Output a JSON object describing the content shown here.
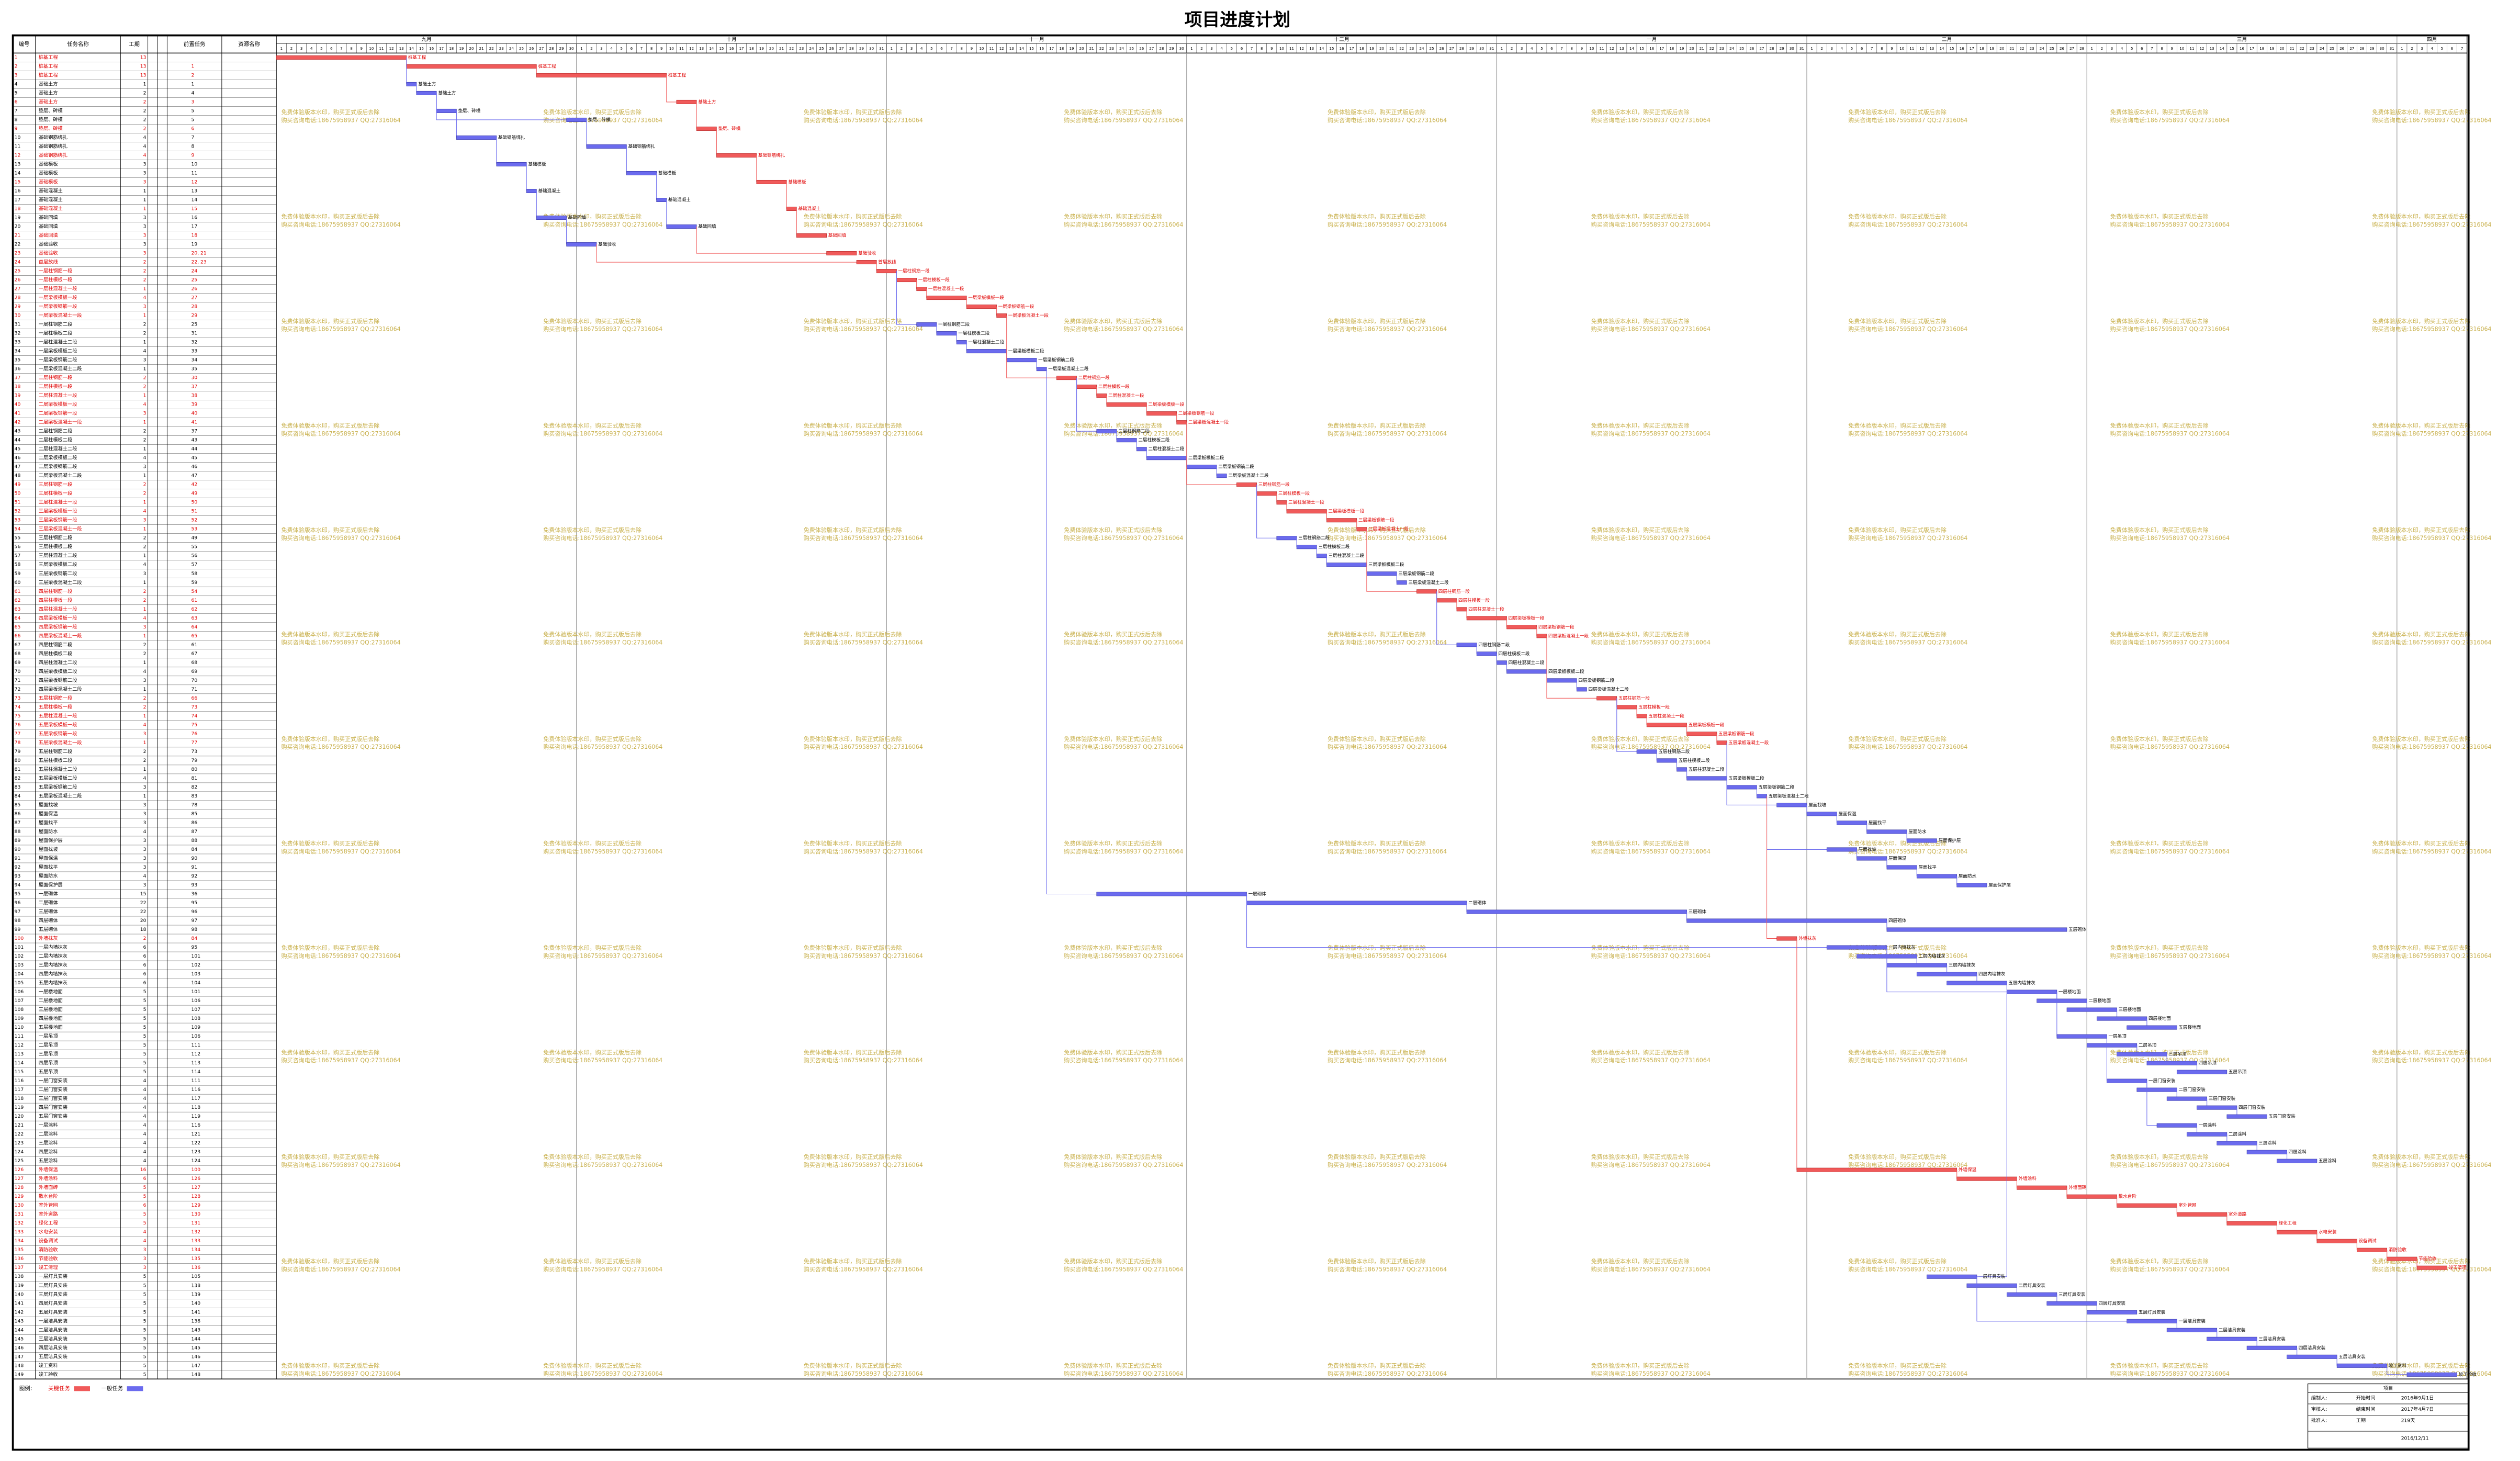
{
  "chart_data": {
    "type": "gantt",
    "title": "项目进度计划",
    "columns": [
      "编号",
      "任务名称",
      "工期",
      "前置任务",
      "资源名称"
    ],
    "xlim": [
      0,
      219
    ],
    "months": [
      {
        "label": "九月",
        "days": [
          1,
          2,
          3,
          4,
          5,
          6,
          7,
          8,
          9,
          10,
          11,
          12,
          13,
          14,
          15,
          16,
          17,
          18,
          19,
          20,
          21,
          22,
          23,
          24,
          25,
          26,
          27,
          28,
          29,
          30
        ]
      },
      {
        "label": "十月",
        "days": [
          1,
          2,
          3,
          4,
          5,
          6,
          7,
          8,
          9,
          10,
          11,
          12,
          13,
          14,
          15,
          16,
          17,
          18,
          19,
          20,
          21,
          22,
          23,
          24,
          25,
          26,
          27,
          28,
          29,
          30,
          31
        ]
      },
      {
        "label": "十一月",
        "days": [
          1,
          2,
          3,
          4,
          5,
          6,
          7,
          8,
          9,
          10,
          11,
          12,
          13,
          14,
          15,
          16,
          17,
          18,
          19,
          20,
          21,
          22,
          23,
          24,
          25,
          26,
          27,
          28,
          29,
          30
        ]
      },
      {
        "label": "十二月",
        "days": [
          1,
          2,
          3,
          4,
          5,
          6,
          7,
          8,
          9,
          10,
          11,
          12,
          13,
          14,
          15,
          16,
          17,
          18,
          19,
          20,
          21,
          22,
          23,
          24,
          25,
          26,
          27,
          28,
          29,
          30,
          31
        ]
      },
      {
        "label": "一月",
        "days": [
          1,
          2,
          3,
          4,
          5,
          6,
          7,
          8,
          9,
          10,
          11,
          12,
          13,
          14,
          15,
          16,
          17,
          18,
          19,
          20,
          21,
          22,
          23,
          24,
          25,
          26,
          27,
          28,
          29,
          30,
          31
        ]
      },
      {
        "label": "二月",
        "days": [
          1,
          2,
          3,
          4,
          5,
          6,
          7,
          8,
          9,
          10,
          11,
          12,
          13,
          14,
          15,
          16,
          17,
          18,
          19,
          20,
          21,
          22,
          23,
          24,
          25,
          26,
          27,
          28
        ]
      },
      {
        "label": "三月",
        "days": [
          1,
          2,
          3,
          4,
          5,
          6,
          7,
          8,
          9,
          10,
          11,
          12,
          13,
          14,
          15,
          16,
          17,
          18,
          19,
          20,
          21,
          22,
          23,
          24,
          25,
          26,
          27,
          28,
          29,
          30,
          31
        ]
      },
      {
        "label": "四月",
        "days": [
          1,
          2,
          3,
          4,
          5,
          6,
          7
        ]
      }
    ],
    "critical_color": "#f05a5a",
    "normal_color": "#6b6bee",
    "rows": [
      [
        1,
        "桩基工程",
        13,
        null,
        0,
        1
      ],
      [
        2,
        "桩基工程",
        13,
        "1",
        13,
        1
      ],
      [
        3,
        "桩基工程",
        13,
        "2",
        26,
        1
      ],
      [
        4,
        "基础土方",
        1,
        "1",
        13,
        0
      ],
      [
        5,
        "基础土方",
        2,
        "4",
        14,
        0
      ],
      [
        6,
        "基础土方",
        2,
        "3",
        40,
        1
      ],
      [
        7,
        "垫层、砖模",
        2,
        "5",
        16,
        0
      ],
      [
        8,
        "垫层、砖模",
        2,
        "5",
        29,
        0
      ],
      [
        9,
        "垫层、砖模",
        2,
        "6",
        42,
        1
      ],
      [
        10,
        "基础钢筋绑扎",
        4,
        "7",
        18,
        0
      ],
      [
        11,
        "基础钢筋绑扎",
        4,
        "8",
        31,
        0
      ],
      [
        12,
        "基础钢筋绑扎",
        4,
        "9",
        44,
        1
      ],
      [
        13,
        "基础模板",
        3,
        "10",
        22,
        0
      ],
      [
        14,
        "基础模板",
        3,
        "11",
        35,
        0
      ],
      [
        15,
        "基础模板",
        3,
        "12",
        48,
        1
      ],
      [
        16,
        "基础混凝土",
        1,
        "13",
        25,
        0
      ],
      [
        17,
        "基础混凝土",
        1,
        "14",
        38,
        0
      ],
      [
        18,
        "基础混凝土",
        1,
        "15",
        51,
        1
      ],
      [
        19,
        "基础回填",
        3,
        "16",
        26,
        0
      ],
      [
        20,
        "基础回填",
        3,
        "17",
        39,
        0
      ],
      [
        21,
        "基础回填",
        3,
        "18",
        52,
        1
      ],
      [
        22,
        "基础验收",
        3,
        "19",
        29,
        0
      ],
      [
        23,
        "基础验收",
        3,
        "20, 21",
        55,
        1
      ],
      [
        24,
        "首层放线",
        2,
        "22, 23",
        58,
        1
      ],
      [
        25,
        "一层柱钢筋一段",
        2,
        "24",
        60,
        1
      ],
      [
        26,
        "一层柱模板一段",
        2,
        "25",
        62,
        1
      ],
      [
        27,
        "一层柱混凝土一段",
        1,
        "26",
        64,
        1
      ],
      [
        28,
        "一层梁板模板一段",
        4,
        "27",
        65,
        1
      ],
      [
        29,
        "一层梁板钢筋一段",
        3,
        "28",
        69,
        1
      ],
      [
        30,
        "一层梁板混凝土一段",
        1,
        "29",
        72,
        1
      ],
      [
        31,
        "一层柱钢筋二段",
        2,
        "25",
        64,
        0
      ],
      [
        32,
        "一层柱模板二段",
        2,
        "31",
        66,
        0
      ],
      [
        33,
        "一层柱混凝土二段",
        1,
        "32",
        68,
        0
      ],
      [
        34,
        "一层梁板模板二段",
        4,
        "33",
        69,
        0
      ],
      [
        35,
        "一层梁板钢筋二段",
        3,
        "34",
        73,
        0
      ],
      [
        36,
        "一层梁板混凝土二段",
        1,
        "35",
        76,
        0
      ],
      [
        37,
        "二层柱钢筋一段",
        2,
        "30",
        78,
        1
      ],
      [
        38,
        "二层柱模板一段",
        2,
        "37",
        80,
        1
      ],
      [
        39,
        "二层柱混凝土一段",
        1,
        "38",
        82,
        1
      ],
      [
        40,
        "二层梁板模板一段",
        4,
        "39",
        83,
        1
      ],
      [
        41,
        "二层梁板钢筋一段",
        3,
        "40",
        87,
        1
      ],
      [
        42,
        "二层梁板混凝土一段",
        1,
        "41",
        90,
        1
      ],
      [
        43,
        "二层柱钢筋二段",
        2,
        "37",
        82,
        0
      ],
      [
        44,
        "二层柱模板二段",
        2,
        "43",
        84,
        0
      ],
      [
        45,
        "二层柱混凝土二段",
        1,
        "44",
        86,
        0
      ],
      [
        46,
        "二层梁板模板二段",
        4,
        "45",
        87,
        0
      ],
      [
        47,
        "二层梁板钢筋二段",
        3,
        "46",
        91,
        0
      ],
      [
        48,
        "二层梁板混凝土二段",
        1,
        "47",
        94,
        0
      ],
      [
        49,
        "三层柱钢筋一段",
        2,
        "42",
        96,
        1
      ],
      [
        50,
        "三层柱模板一段",
        2,
        "49",
        98,
        1
      ],
      [
        51,
        "三层柱混凝土一段",
        1,
        "50",
        100,
        1
      ],
      [
        52,
        "三层梁板模板一段",
        4,
        "51",
        101,
        1
      ],
      [
        53,
        "三层梁板钢筋一段",
        3,
        "52",
        105,
        1
      ],
      [
        54,
        "三层梁板混凝土一段",
        1,
        "53",
        108,
        1
      ],
      [
        55,
        "三层柱钢筋二段",
        2,
        "49",
        100,
        0
      ],
      [
        56,
        "三层柱模板二段",
        2,
        "55",
        102,
        0
      ],
      [
        57,
        "三层柱混凝土二段",
        1,
        "56",
        104,
        0
      ],
      [
        58,
        "三层梁板模板二段",
        4,
        "57",
        105,
        0
      ],
      [
        59,
        "三层梁板钢筋二段",
        3,
        "58",
        109,
        0
      ],
      [
        60,
        "三层梁板混凝土二段",
        1,
        "59",
        112,
        0
      ],
      [
        61,
        "四层柱钢筋一段",
        2,
        "54",
        114,
        1
      ],
      [
        62,
        "四层柱模板一段",
        2,
        "61",
        116,
        1
      ],
      [
        63,
        "四层柱混凝土一段",
        1,
        "62",
        118,
        1
      ],
      [
        64,
        "四层梁板模板一段",
        4,
        "63",
        119,
        1
      ],
      [
        65,
        "四层梁板钢筋一段",
        3,
        "64",
        123,
        1
      ],
      [
        66,
        "四层梁板混凝土一段",
        1,
        "65",
        126,
        1
      ],
      [
        67,
        "四层柱钢筋二段",
        2,
        "61",
        118,
        0
      ],
      [
        68,
        "四层柱模板二段",
        2,
        "67",
        120,
        0
      ],
      [
        69,
        "四层柱混凝土二段",
        1,
        "68",
        122,
        0
      ],
      [
        70,
        "四层梁板模板二段",
        4,
        "69",
        123,
        0
      ],
      [
        71,
        "四层梁板钢筋二段",
        3,
        "70",
        127,
        0
      ],
      [
        72,
        "四层梁板混凝土二段",
        1,
        "71",
        130,
        0
      ],
      [
        73,
        "五层柱钢筋一段",
        2,
        "66",
        132,
        1
      ],
      [
        74,
        "五层柱模板一段",
        2,
        "73",
        134,
        1
      ],
      [
        75,
        "五层柱混凝土一段",
        1,
        "74",
        136,
        1
      ],
      [
        76,
        "五层梁板模板一段",
        4,
        "75",
        137,
        1
      ],
      [
        77,
        "五层梁板钢筋一段",
        3,
        "76",
        141,
        1
      ],
      [
        78,
        "五层梁板混凝土一段",
        1,
        "77",
        144,
        1
      ],
      [
        79,
        "五层柱钢筋二段",
        2,
        "73",
        136,
        0
      ],
      [
        80,
        "五层柱模板二段",
        2,
        "79",
        138,
        0
      ],
      [
        81,
        "五层柱混凝土二段",
        1,
        "80",
        140,
        0
      ],
      [
        82,
        "五层梁板模板二段",
        4,
        "81",
        141,
        0
      ],
      [
        83,
        "五层梁板钢筋二段",
        3,
        "82",
        145,
        0
      ],
      [
        84,
        "五层梁板混凝土二段",
        1,
        "83",
        148,
        0
      ],
      [
        85,
        "屋面找坡",
        3,
        "78",
        150,
        0
      ],
      [
        86,
        "屋面保温",
        3,
        "85",
        153,
        0
      ],
      [
        87,
        "屋面找平",
        3,
        "86",
        156,
        0
      ],
      [
        88,
        "屋面防水",
        4,
        "87",
        159,
        0
      ],
      [
        89,
        "屋面保护层",
        3,
        "88",
        163,
        0
      ],
      [
        90,
        "屋面找坡",
        3,
        "84",
        155,
        0
      ],
      [
        91,
        "屋面保温",
        3,
        "90",
        158,
        0
      ],
      [
        92,
        "屋面找平",
        3,
        "91",
        161,
        0
      ],
      [
        93,
        "屋面防水",
        4,
        "92",
        164,
        0
      ],
      [
        94,
        "屋面保护层",
        3,
        "93",
        168,
        0
      ],
      [
        95,
        "一层砌体",
        15,
        "36",
        82,
        0
      ],
      [
        96,
        "二层砌体",
        22,
        "95",
        97,
        0
      ],
      [
        97,
        "三层砌体",
        22,
        "96",
        119,
        0
      ],
      [
        98,
        "四层砌体",
        20,
        "97",
        141,
        0
      ],
      [
        99,
        "五层砌体",
        18,
        "98",
        161,
        0
      ],
      [
        100,
        "外墙抹灰",
        2,
        "84",
        150,
        1
      ],
      [
        101,
        "一层内墙抹灰",
        6,
        "95",
        155,
        0
      ],
      [
        102,
        "二层内墙抹灰",
        6,
        "101",
        158,
        0
      ],
      [
        103,
        "三层内墙抹灰",
        6,
        "102",
        161,
        0
      ],
      [
        104,
        "四层内墙抹灰",
        6,
        "103",
        164,
        0
      ],
      [
        105,
        "五层内墙抹灰",
        6,
        "104",
        167,
        0
      ],
      [
        106,
        "一层楼地面",
        5,
        "101",
        173,
        0
      ],
      [
        107,
        "二层楼地面",
        5,
        "106",
        176,
        0
      ],
      [
        108,
        "三层楼地面",
        5,
        "107",
        179,
        0
      ],
      [
        109,
        "四层楼地面",
        5,
        "108",
        182,
        0
      ],
      [
        110,
        "五层楼地面",
        5,
        "109",
        185,
        0
      ],
      [
        111,
        "一层吊顶",
        5,
        "106",
        178,
        0
      ],
      [
        112,
        "二层吊顶",
        5,
        "111",
        181,
        0
      ],
      [
        113,
        "三层吊顶",
        5,
        "112",
        184,
        0
      ],
      [
        114,
        "四层吊顶",
        5,
        "113",
        187,
        0
      ],
      [
        115,
        "五层吊顶",
        5,
        "114",
        190,
        0
      ],
      [
        116,
        "一层门窗安装",
        4,
        "111",
        183,
        0
      ],
      [
        117,
        "二层门窗安装",
        4,
        "116",
        186,
        0
      ],
      [
        118,
        "三层门窗安装",
        4,
        "117",
        189,
        0
      ],
      [
        119,
        "四层门窗安装",
        4,
        "118",
        192,
        0
      ],
      [
        120,
        "五层门窗安装",
        4,
        "119",
        195,
        0
      ],
      [
        121,
        "一层涂料",
        4,
        "116",
        188,
        0
      ],
      [
        122,
        "二层涂料",
        4,
        "121",
        191,
        0
      ],
      [
        123,
        "三层涂料",
        4,
        "122",
        194,
        0
      ],
      [
        124,
        "四层涂料",
        4,
        "123",
        197,
        0
      ],
      [
        125,
        "五层涂料",
        4,
        "124",
        200,
        0
      ],
      [
        126,
        "外墙保温",
        16,
        "100",
        152,
        1
      ],
      [
        127,
        "外墙涂料",
        6,
        "126",
        168,
        1
      ],
      [
        128,
        "外墙面砖",
        5,
        "127",
        174,
        1
      ],
      [
        129,
        "散水台阶",
        5,
        "128",
        179,
        1
      ],
      [
        130,
        "室外管网",
        6,
        "129",
        184,
        1
      ],
      [
        131,
        "室外道路",
        5,
        "130",
        190,
        1
      ],
      [
        132,
        "绿化工程",
        5,
        "131",
        195,
        1
      ],
      [
        133,
        "水电安装",
        4,
        "132",
        200,
        1
      ],
      [
        134,
        "设备调试",
        4,
        "133",
        204,
        1
      ],
      [
        135,
        "消防验收",
        3,
        "134",
        208,
        1
      ],
      [
        136,
        "节能验收",
        3,
        "135",
        211,
        1
      ],
      [
        137,
        "竣工清理",
        3,
        "136",
        214,
        1
      ],
      [
        138,
        "一层灯具安装",
        5,
        "105",
        165,
        0
      ],
      [
        139,
        "二层灯具安装",
        5,
        "138",
        169,
        0
      ],
      [
        140,
        "三层灯具安装",
        5,
        "139",
        173,
        0
      ],
      [
        141,
        "四层灯具安装",
        5,
        "140",
        177,
        0
      ],
      [
        142,
        "五层灯具安装",
        5,
        "141",
        181,
        0
      ],
      [
        143,
        "一层洁具安装",
        5,
        "138",
        185,
        0
      ],
      [
        144,
        "二层洁具安装",
        5,
        "143",
        189,
        0
      ],
      [
        145,
        "三层洁具安装",
        5,
        "144",
        193,
        0
      ],
      [
        146,
        "四层洁具安装",
        5,
        "145",
        197,
        0
      ],
      [
        147,
        "五层洁具安装",
        5,
        "146",
        201,
        0
      ],
      [
        148,
        "竣工资料",
        5,
        "147",
        206,
        0
      ],
      [
        149,
        "竣工验收",
        5,
        "148",
        213,
        0
      ]
    ],
    "legend": {
      "title": "图例:",
      "critical": "关键任务",
      "normal": "一般任务"
    },
    "watermark": [
      "免费体验版本水印，购买正式版后去除",
      "购买咨询电话:18675958937 QQ:27316064"
    ],
    "info": {
      "header": "项目",
      "rows": [
        [
          "编制人:",
          "开始时间",
          "2016年9月1日"
        ],
        [
          "审核人:",
          "结束时间",
          "2017年4月7日"
        ],
        [
          "批准人:",
          "工期",
          "219天"
        ]
      ],
      "date": "2016/12/11"
    }
  }
}
